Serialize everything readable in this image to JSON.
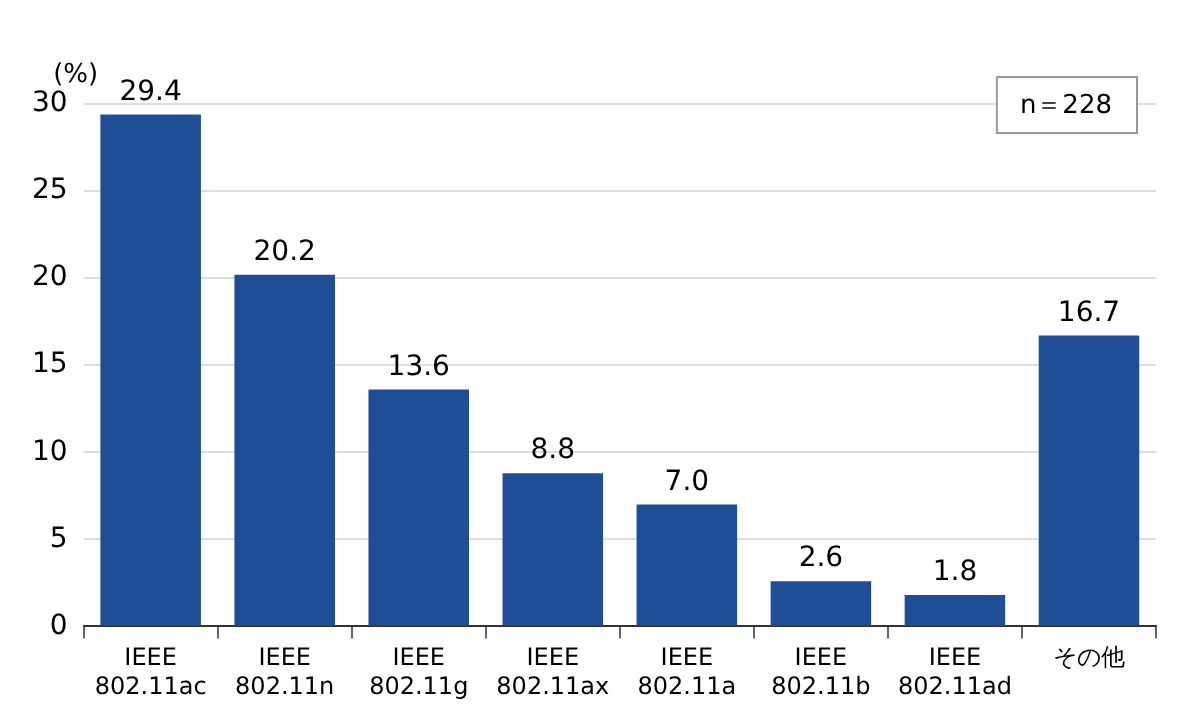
{
  "chart_data": {
    "type": "bar",
    "ylabel": "(%)",
    "categories": [
      "IEEE\n802.11ac",
      "IEEE\n802.11n",
      "IEEE\n802.11g",
      "IEEE\n802.11ax",
      "IEEE\n802.11a",
      "IEEE\n802.11b",
      "IEEE\n802.11ad",
      "その他"
    ],
    "values": [
      29.4,
      20.2,
      13.6,
      8.8,
      7.0,
      2.6,
      1.8,
      16.7
    ],
    "value_labels": [
      "29.4",
      "20.2",
      "13.6",
      "8.8",
      "7.0",
      "2.6",
      "1.8",
      "16.7"
    ],
    "color": "#1f4e96",
    "ylim": [
      0,
      30
    ],
    "yticks": [
      0,
      5,
      10,
      15,
      20,
      25,
      30
    ],
    "grid": "y",
    "annotations": [
      "n＝228"
    ]
  }
}
